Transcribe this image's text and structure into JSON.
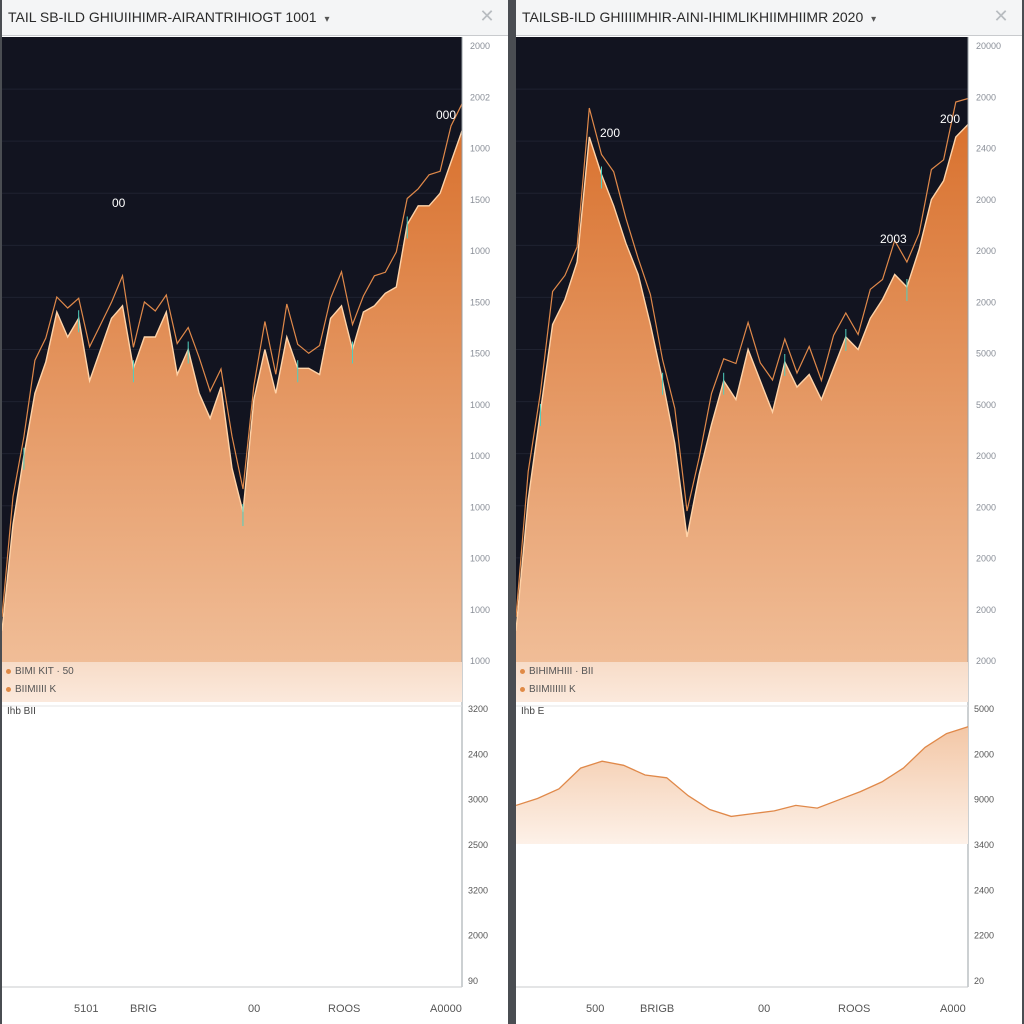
{
  "panels": [
    {
      "id": "left",
      "title": "TAIL SB-ILD GHIUIIHIMR-AIRANTRIHIOGT 1001",
      "close_icon": "close-icon",
      "legend": [
        "BIMI KIT · 50",
        "BIIMIIII K"
      ],
      "subhead": "Ihb  BII",
      "upper_ticks": [
        "2000",
        "2002",
        "1000",
        "1500",
        "1000",
        "1500",
        "1500",
        "1000",
        "1000",
        "1000",
        "1000",
        "1000",
        "1000"
      ],
      "lower_ticks": [
        "3200",
        "2400",
        "3000",
        "2500",
        "3200",
        "2000",
        "90"
      ],
      "x_labels": [
        "5101",
        "BRIG",
        "00",
        "ROOS",
        "A0000"
      ],
      "annotations": [
        "00",
        "000"
      ],
      "series_color": "#e0894a",
      "main_values": [
        0.05,
        0.22,
        0.33,
        0.43,
        0.48,
        0.56,
        0.52,
        0.55,
        0.45,
        0.5,
        0.55,
        0.57,
        0.47,
        0.52,
        0.52,
        0.56,
        0.46,
        0.5,
        0.43,
        0.39,
        0.44,
        0.31,
        0.24,
        0.42,
        0.5,
        0.43,
        0.52,
        0.47,
        0.47,
        0.46,
        0.55,
        0.57,
        0.5,
        0.56,
        0.57,
        0.59,
        0.6,
        0.7,
        0.73,
        0.73,
        0.75,
        0.8,
        0.85
      ],
      "lower_values": []
    },
    {
      "id": "right",
      "title": "TAILSB-ILD GHIIIIMHIR-AINI-IHIMLIKHIIMHIIMR 2020",
      "close_icon": "close-icon",
      "legend": [
        "BIHIMHIII · BII",
        "BIIMIIIIII K"
      ],
      "subhead": "Ihb  E",
      "upper_ticks": [
        "20000",
        "2000",
        "2400",
        "2000",
        "2000",
        "2000",
        "5000",
        "5000",
        "2000",
        "2000",
        "2000",
        "2000",
        "2000"
      ],
      "lower_ticks": [
        "5000",
        "2000",
        "9000",
        "3400",
        "2400",
        "2200",
        "20"
      ],
      "x_labels": [
        "500",
        "BRIGB",
        "00",
        "ROOS",
        "A000"
      ],
      "annotations": [
        "200",
        "2003",
        "200"
      ],
      "series_color": "#e0894a",
      "main_values": [
        0.05,
        0.26,
        0.4,
        0.54,
        0.58,
        0.64,
        0.84,
        0.78,
        0.73,
        0.67,
        0.62,
        0.54,
        0.45,
        0.35,
        0.2,
        0.3,
        0.38,
        0.45,
        0.42,
        0.5,
        0.45,
        0.4,
        0.48,
        0.44,
        0.46,
        0.42,
        0.47,
        0.52,
        0.5,
        0.55,
        0.58,
        0.62,
        0.6,
        0.66,
        0.74,
        0.77,
        0.84,
        0.86
      ],
      "lower_values": [
        0.28,
        0.33,
        0.4,
        0.55,
        0.6,
        0.57,
        0.5,
        0.48,
        0.35,
        0.25,
        0.2,
        0.22,
        0.24,
        0.28,
        0.26,
        0.32,
        0.38,
        0.45,
        0.55,
        0.7,
        0.8,
        0.85
      ]
    }
  ]
}
